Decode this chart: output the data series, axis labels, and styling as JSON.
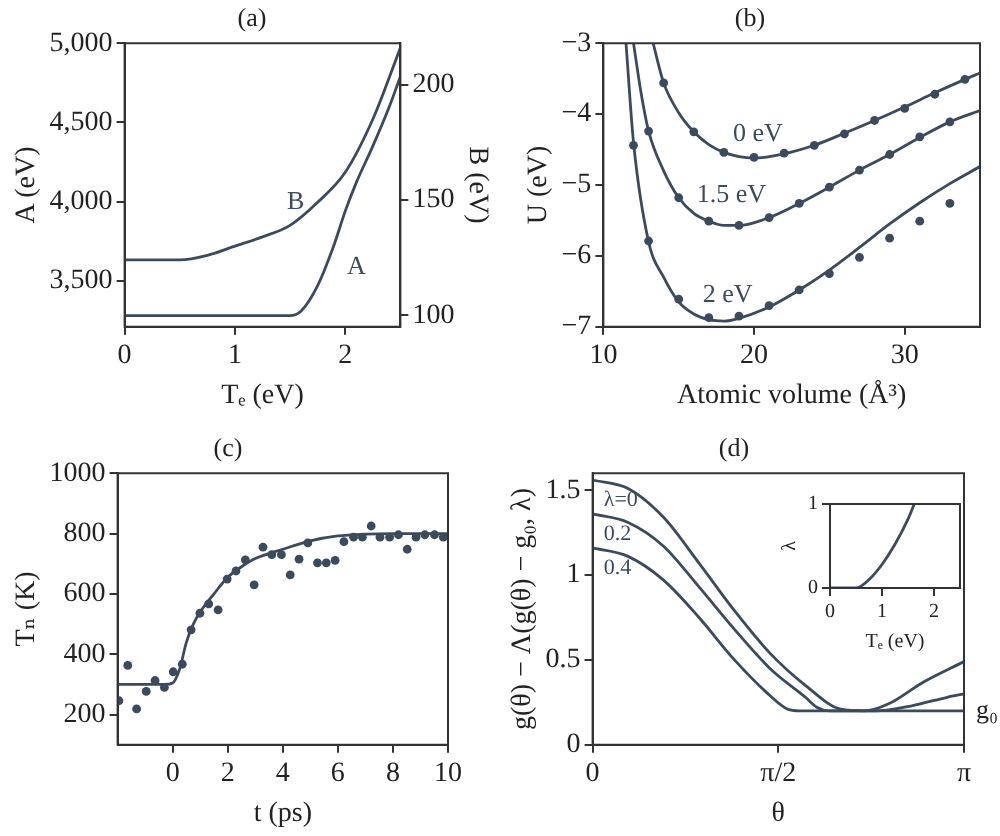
{
  "chart_data": [
    {
      "type": "line",
      "title": "(a)",
      "xlabel": "Tₑ (eV)",
      "ylabel": "A (eV)",
      "y2label": "B (eV)",
      "xlim": [
        0,
        2.5
      ],
      "xticks": [
        0,
        1,
        2
      ],
      "ylim": [
        3210,
        5000
      ],
      "yticks": [
        {
          "value": 3500,
          "label": "3,500"
        },
        {
          "value": 4000,
          "label": "4,000"
        },
        {
          "value": 4500,
          "label": "4,500"
        },
        {
          "value": 5000,
          "label": "5,000"
        }
      ],
      "y2lim": [
        95,
        218
      ],
      "y2ticks": [
        100,
        150,
        200
      ],
      "marker": "none",
      "series": [
        {
          "name": "A",
          "color": "#3b4a5c",
          "x": [
            0,
            0.5,
            1,
            1.5,
            1.6,
            1.75,
            1.9,
            2,
            2.1,
            2.25,
            2.4,
            2.5
          ],
          "values": [
            3280,
            3280,
            3280,
            3280,
            3310,
            3470,
            3730,
            3940,
            4120,
            4350,
            4600,
            4790
          ]
        },
        {
          "name": "B",
          "color": "#3b4a5c",
          "axis": "y2",
          "x": [
            0,
            0.5,
            0.75,
            1,
            1.25,
            1.5,
            1.75,
            2,
            2.25,
            2.5
          ],
          "values": [
            124,
            124,
            126,
            130,
            134,
            139,
            149,
            162,
            185,
            216
          ]
        }
      ]
    },
    {
      "type": "line",
      "xlabel": "Atomic volume (Å³)",
      "ylabel": "U (eV)",
      "title": "(b)",
      "xlim": [
        10,
        35
      ],
      "xticks": [
        10,
        20,
        30
      ],
      "ylim": [
        -7,
        -3
      ],
      "yticks": [
        {
          "value": -7,
          "label": "−7"
        },
        {
          "value": -6,
          "label": "−6"
        },
        {
          "value": -5,
          "label": "−5"
        },
        {
          "value": -4,
          "label": "−4"
        },
        {
          "value": -3,
          "label": "−3"
        }
      ],
      "series": [
        {
          "name": "0 eV",
          "color": "#3b4a5c",
          "marker": "none",
          "x": [
            13.3,
            14,
            15,
            16,
            17,
            18,
            19,
            20,
            22,
            24,
            26,
            28,
            30,
            32,
            34,
            35
          ],
          "values": [
            -3,
            -3.56,
            -3.98,
            -4.25,
            -4.43,
            -4.54,
            -4.6,
            -4.62,
            -4.56,
            -4.44,
            -4.27,
            -4.09,
            -3.9,
            -3.7,
            -3.51,
            -3.42
          ]
        },
        {
          "name": "1.5 eV",
          "color": "#3b4a5c",
          "marker": "none",
          "x": [
            12,
            12.5,
            13,
            14,
            15,
            16,
            17,
            18,
            19,
            21,
            23,
            25,
            27,
            29,
            31,
            33,
            35
          ],
          "values": [
            -3,
            -3.7,
            -4.24,
            -4.8,
            -5.18,
            -5.4,
            -5.51,
            -5.57,
            -5.57,
            -5.46,
            -5.26,
            -5.03,
            -4.79,
            -4.57,
            -4.33,
            -4.11,
            -3.95
          ]
        },
        {
          "name": "2 eV",
          "color": "#3b4a5c",
          "marker": "none",
          "x": [
            11.5,
            12,
            13,
            14,
            15,
            16,
            17,
            18,
            19,
            21,
            23,
            25,
            27,
            29,
            31,
            33,
            35
          ],
          "values": [
            -3,
            -4.4,
            -5.8,
            -6.3,
            -6.65,
            -6.82,
            -6.9,
            -6.92,
            -6.88,
            -6.72,
            -6.48,
            -6.2,
            -5.88,
            -5.55,
            -5.25,
            -4.98,
            -4.74
          ]
        },
        {
          "type": "scatter",
          "color": "#3b4a5c",
          "marker": "circle",
          "x": [
            14,
            16,
            18,
            20,
            22,
            24,
            26,
            28,
            30,
            32,
            34
          ],
          "values": [
            -3.56,
            -4.25,
            -4.54,
            -4.61,
            -4.55,
            -4.44,
            -4.28,
            -4.09,
            -3.92,
            -3.72,
            -3.51
          ]
        },
        {
          "type": "scatter",
          "color": "#3b4a5c",
          "marker": "circle",
          "x": [
            13,
            15,
            17,
            19,
            21,
            23,
            25,
            27,
            29,
            31,
            33
          ],
          "values": [
            -4.24,
            -5.18,
            -5.51,
            -5.57,
            -5.46,
            -5.26,
            -5.03,
            -4.79,
            -4.57,
            -4.32,
            -4.11
          ]
        },
        {
          "type": "scatter",
          "color": "#3b4a5c",
          "marker": "circle",
          "x": [
            12,
            13,
            15,
            17,
            19,
            21,
            23,
            25,
            27,
            29,
            31,
            33
          ],
          "values": [
            -4.44,
            -5.79,
            -6.61,
            -6.87,
            -6.85,
            -6.7,
            -6.48,
            -6.25,
            -6.02,
            -5.75,
            -5.51,
            -5.26
          ]
        }
      ]
    },
    {
      "type": "scatter",
      "title": "(c)",
      "xlabel": "t (ps)",
      "ylabel": "Tₙ (K)",
      "xlim": [
        -2,
        10
      ],
      "xticks": [
        0,
        2,
        4,
        6,
        8,
        10
      ],
      "ylim": [
        100,
        1000
      ],
      "yticks": [
        200,
        400,
        600,
        800,
        1000
      ],
      "series": [
        {
          "color": "#3b4a5c",
          "marker": "circle",
          "x": [
            -1.95,
            -1.63,
            -1.31,
            -0.96,
            -0.64,
            -0.3,
            0.02,
            0.35,
            0.67,
            0.99,
            1.31,
            1.65,
            1.98,
            2.3,
            2.64,
            2.96,
            3.28,
            3.6,
            3.95,
            4.27,
            4.59,
            4.91,
            5.26,
            5.58,
            5.9,
            6.22,
            6.57,
            6.89,
            7.21,
            7.53,
            7.88,
            8.2,
            8.52,
            8.84,
            9.16,
            9.51,
            9.83
          ],
          "values": [
            246,
            363,
            219,
            277,
            313,
            290,
            342,
            367,
            481,
            536,
            567,
            547,
            649,
            676,
            713,
            630,
            755,
            730,
            730,
            663,
            715,
            769,
            703,
            703,
            711,
            773,
            788,
            788,
            825,
            788,
            788,
            796,
            748,
            788,
            796,
            796,
            788
          ]
        },
        {
          "type": "line",
          "color": "#3b4a5c",
          "marker": "none",
          "x": [
            -2,
            -0.3,
            0,
            0.25,
            0.5,
            0.75,
            1,
            1.5,
            2,
            2.5,
            3,
            4,
            5,
            6,
            7,
            8,
            10
          ],
          "values": [
            300,
            300,
            305,
            350,
            440,
            500,
            540,
            600,
            655,
            690,
            717,
            748,
            776,
            792,
            798,
            800,
            800
          ]
        }
      ]
    },
    {
      "type": "line",
      "title": "(d)",
      "xlabel": "θ",
      "ylabel": "g(θ) − Λ(g(θ) − g₀, λ)",
      "xlim": [
        0,
        3.1416
      ],
      "xticks": [
        0,
        {
          "value": 1.5708,
          "label": "π/2"
        },
        {
          "value": 3.1416,
          "label": "π"
        }
      ],
      "ylim": [
        0,
        1.6
      ],
      "yticks": [
        0,
        0.5,
        1,
        1.5
      ],
      "marker": "none",
      "series": [
        {
          "name": "λ=0",
          "color": "#3b4a5c",
          "x": [
            0,
            0.3,
            0.6,
            0.9,
            1.2,
            1.5,
            1.8,
            2.1,
            2.3,
            2.5,
            2.8,
            3.1416
          ],
          "values": [
            1.56,
            1.51,
            1.34,
            1.07,
            0.79,
            0.54,
            0.35,
            0.21,
            0.2,
            0.24,
            0.37,
            0.49
          ]
        },
        {
          "name": "0.2",
          "color": "#3b4a5c",
          "x": [
            0,
            0.3,
            0.6,
            0.9,
            1.2,
            1.5,
            1.8,
            1.9,
            2,
            2.4,
            2.7,
            3,
            3.1416
          ],
          "values": [
            1.36,
            1.31,
            1.17,
            0.93,
            0.68,
            0.45,
            0.28,
            0.22,
            0.2,
            0.2,
            0.23,
            0.28,
            0.3
          ]
        },
        {
          "name": "0.4",
          "color": "#3b4a5c",
          "x": [
            0,
            0.3,
            0.6,
            0.9,
            1.2,
            1.5,
            1.65,
            1.75,
            3.1416
          ],
          "values": [
            1.16,
            1.11,
            0.97,
            0.75,
            0.5,
            0.29,
            0.21,
            0.2,
            0.2
          ]
        }
      ],
      "annotations": [
        {
          "text": "g₀",
          "x": 3.1416,
          "y": 0.2
        }
      ]
    },
    {
      "type": "line",
      "xlabel": "Tₑ (eV)",
      "ylabel": "λ",
      "xlim": [
        0,
        2.5
      ],
      "xticks": [
        0,
        1,
        2
      ],
      "ylim": [
        0,
        1
      ],
      "yticks": [
        0,
        1
      ],
      "marker": "none",
      "series": [
        {
          "color": "#3b4a5c",
          "x": [
            0,
            0.5,
            0.75,
            1,
            1.25,
            1.5,
            1.62
          ],
          "values": [
            0,
            0,
            0.1,
            0.28,
            0.52,
            0.82,
            1
          ]
        }
      ]
    }
  ]
}
